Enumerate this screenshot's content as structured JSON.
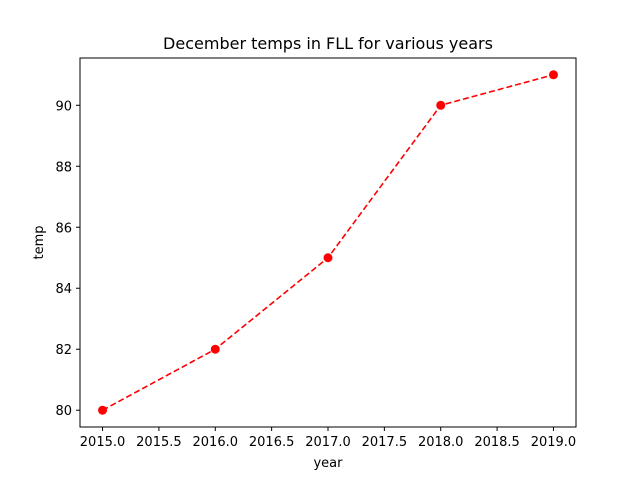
{
  "chart_data": {
    "type": "line",
    "title": "December temps in FLL for various years",
    "xlabel": "year",
    "ylabel": "temp",
    "x": [
      2015,
      2016,
      2017,
      2018,
      2019
    ],
    "series": [
      {
        "values": [
          80,
          82,
          85,
          90,
          91
        ],
        "color": "#ff0000",
        "line_style": "dashed",
        "marker": "circle"
      }
    ],
    "xlim": [
      2014.8,
      2019.2
    ],
    "ylim": [
      79.45,
      91.55
    ],
    "xticks": [
      "2015.0",
      "2015.5",
      "2016.0",
      "2016.5",
      "2017.0",
      "2017.5",
      "2018.0",
      "2018.5",
      "2019.0"
    ],
    "yticks": [
      "80",
      "82",
      "84",
      "86",
      "88",
      "90"
    ],
    "grid": false,
    "legend": "none"
  }
}
